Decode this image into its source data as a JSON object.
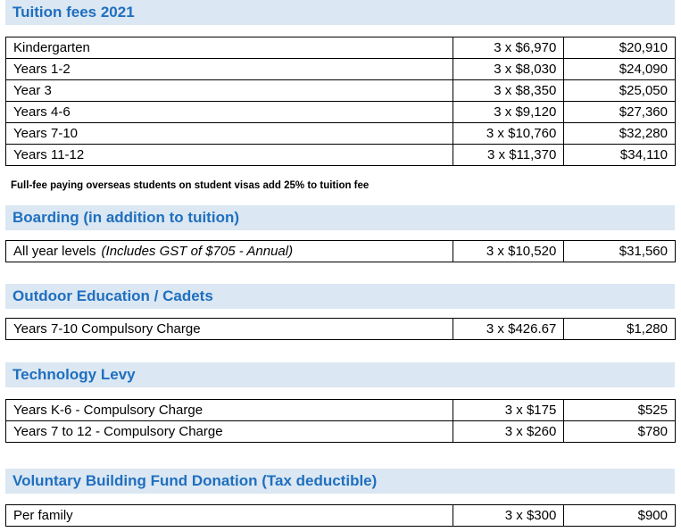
{
  "sections": [
    {
      "title": "Tuition fees 2021",
      "rows": [
        {
          "label": "Kindergarten",
          "installments": "3 x $6,970",
          "total": "$20,910"
        },
        {
          "label": "Years 1-2",
          "installments": "3 x $8,030",
          "total": "$24,090"
        },
        {
          "label": "Year 3",
          "installments": "3 x $8,350",
          "total": "$25,050"
        },
        {
          "label": "Years 4-6",
          "installments": "3 x $9,120",
          "total": "$27,360"
        },
        {
          "label": "Years 7-10",
          "installments": "3 x $10,760",
          "total": "$32,280"
        },
        {
          "label": "Years 11-12",
          "installments": "3 x $11,370",
          "total": "$34,110"
        }
      ],
      "note": "Full-fee paying overseas students on student visas add 25% to tuition fee"
    },
    {
      "title": "Boarding (in addition to tuition)",
      "rows": [
        {
          "label": "All year levels",
          "label_note": "(Includes GST of $705 - Annual)",
          "installments": "3 x $10,520",
          "total": "$31,560"
        }
      ]
    },
    {
      "title": "Outdoor Education / Cadets",
      "rows": [
        {
          "label": "Years 7-10 Compulsory Charge",
          "installments": "3 x $426.67",
          "total": "$1,280"
        }
      ]
    },
    {
      "title": "Technology Levy",
      "rows": [
        {
          "label": "Years K-6 - Compulsory Charge",
          "installments": "3 x $175",
          "total": "$525"
        },
        {
          "label": "Years 7 to 12 - Compulsory Charge",
          "installments": "3 x $260",
          "total": "$780"
        }
      ]
    },
    {
      "title": "Voluntary Building Fund Donation (Tax deductible)",
      "rows": [
        {
          "label": "Per family",
          "installments": "3 x $300",
          "total": "$900"
        }
      ]
    }
  ]
}
